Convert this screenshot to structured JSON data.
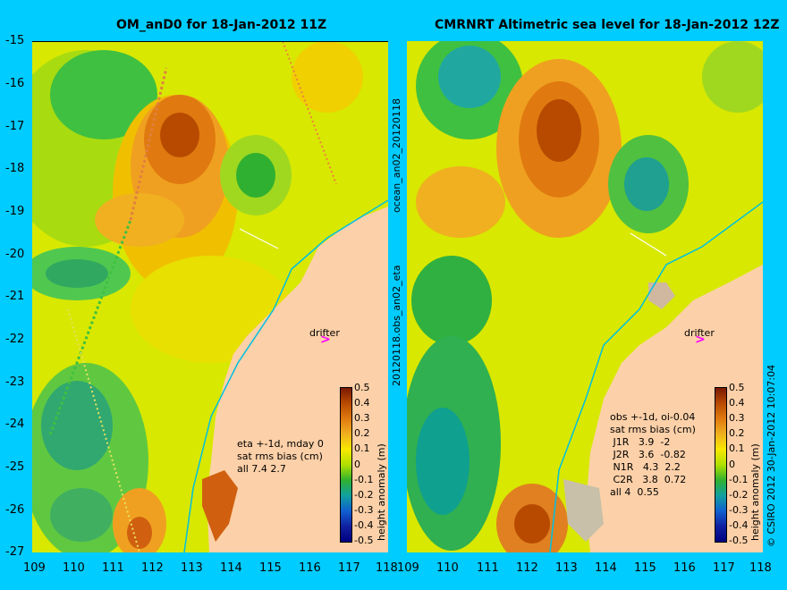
{
  "left": {
    "title": "OM_anD0 for 18-Jan-2012 11Z",
    "annotation": "eta +-1d, mday 0\nsat rms bias (cm)\nall 7.4 2.7",
    "drifter_label": "drifter"
  },
  "right": {
    "title": "CMRNRT Altimetric sea level  for 18-Jan-2012 12Z",
    "annotation": "obs +-1d, oi-0.04\nsat rms bias (cm)\n J1R   3.9  -2\n J2R   3.6  -0.82\n N1R   4.3  2.2\n C2R   3.8  0.72\nall 4  0.55",
    "drifter_label": "drifter"
  },
  "colorbar": {
    "label": "height anomaly (m)",
    "ticks": [
      "0.5",
      "0.4",
      "0.3",
      "0.2",
      "0.1",
      "0",
      "-0.1",
      "-0.2",
      "-0.3",
      "-0.4",
      "-0.5"
    ],
    "colors": [
      "#7a1a00",
      "#b84a00",
      "#e07a10",
      "#f0b020",
      "#f8e800",
      "#b0e000",
      "#30b030",
      "#10a0a0",
      "#1060d0",
      "#1020a0",
      "#000080"
    ]
  },
  "axes": {
    "y_ticks": [
      "-15",
      "-16",
      "-17",
      "-18",
      "-19",
      "-20",
      "-21",
      "-22",
      "-23",
      "-24",
      "-25",
      "-26",
      "-27"
    ],
    "x_ticks": [
      "109",
      "110",
      "111",
      "112",
      "113",
      "114",
      "115",
      "116",
      "117",
      "118"
    ]
  },
  "side_labels": {
    "left_vertical_1": "ocean_an02_20120118",
    "left_vertical_2": "20120118.obs_an02_eta",
    "right_vertical": "© CSIRO 2012   30-Jan-2012 10:07:04"
  }
}
